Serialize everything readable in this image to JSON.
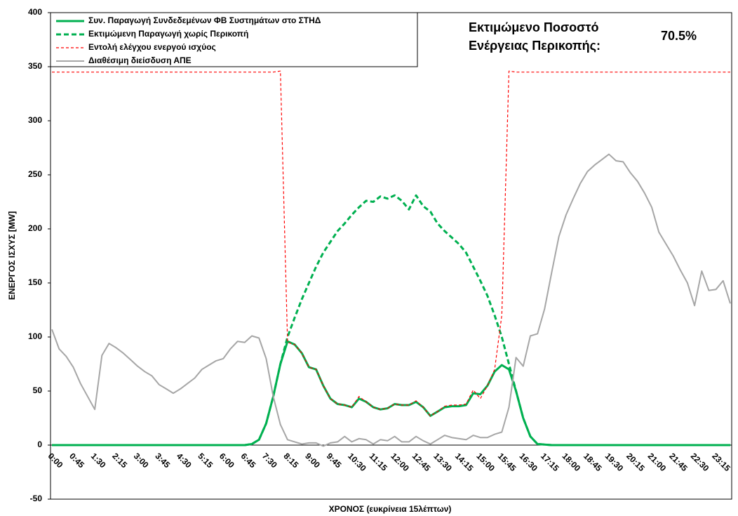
{
  "chart_data": {
    "type": "line",
    "x_label": "ΧΡΟΝΟΣ (ευκρίνεια 15λέπτων)",
    "y_label": "ΕΝΕΡΓΟΣ ΙΣΧΥΣ [MW]",
    "annotation": [
      "Εκτιμώμενο Ποσοστό",
      "Ενέργειας Περικοπής:"
    ],
    "annotation_value": "70.5%",
    "ylim": [
      -50,
      400
    ],
    "yticks": [
      -50,
      0,
      50,
      100,
      150,
      200,
      250,
      300,
      350,
      400
    ],
    "grid": false,
    "legend": "upper left",
    "categories": [
      "0:00",
      null,
      null,
      "0:45",
      null,
      null,
      "1:30",
      null,
      null,
      "2:15",
      null,
      null,
      "3:00",
      null,
      null,
      "3:45",
      null,
      null,
      "4:30",
      null,
      null,
      "5:15",
      null,
      null,
      "6:00",
      null,
      null,
      "6:45",
      null,
      null,
      "7:30",
      null,
      null,
      "8:15",
      null,
      null,
      "9:00",
      null,
      null,
      "9:45",
      null,
      null,
      "10:30",
      null,
      null,
      "11:15",
      null,
      null,
      "12:00",
      null,
      null,
      "12:45",
      null,
      null,
      "13:30",
      null,
      null,
      "14:15",
      null,
      null,
      "15:00",
      null,
      null,
      "15:45",
      null,
      null,
      "16:30",
      null,
      null,
      "17:15",
      null,
      null,
      "18:00",
      null,
      null,
      "18:45",
      null,
      null,
      "19:30",
      null,
      null,
      "20:15",
      null,
      null,
      "21:00",
      null,
      null,
      "21:45",
      null,
      null,
      "22:30",
      null,
      null,
      "23:15",
      null,
      null
    ],
    "series": [
      {
        "name": "Συν. Παραγωγή Συνδεδεμένων ΦΒ Συστημάτων στο ΣΤΗΔ",
        "color": "#00b050",
        "style": "solid",
        "values": [
          0,
          0,
          0,
          0,
          0,
          0,
          0,
          0,
          0,
          0,
          0,
          0,
          0,
          0,
          0,
          0,
          0,
          0,
          0,
          0,
          0,
          0,
          0,
          0,
          0,
          0,
          0,
          0,
          1,
          5,
          20,
          45,
          75,
          96,
          93,
          85,
          72,
          70,
          55,
          43,
          38,
          37,
          35,
          43,
          40,
          35,
          33,
          34,
          38,
          37,
          37,
          40,
          35,
          27,
          31,
          35,
          36,
          36,
          37,
          48,
          47,
          55,
          68,
          74,
          70,
          50,
          25,
          8,
          1,
          0.5,
          0,
          0,
          0,
          0,
          0,
          0,
          0,
          0,
          0,
          0,
          0,
          0,
          0,
          0,
          0,
          0,
          0,
          0,
          0,
          0,
          0,
          0,
          0,
          0,
          0,
          0
        ]
      },
      {
        "name": "Εκτιμώμενη Παραγωγή χωρίς Περικοπή",
        "color": "#00b050",
        "style": "dashed",
        "values": [
          0,
          0,
          0,
          0,
          0,
          0,
          0,
          0,
          0,
          0,
          0,
          0,
          0,
          0,
          0,
          0,
          0,
          0,
          0,
          0,
          0,
          0,
          0,
          0,
          0,
          0,
          0,
          0,
          1,
          5,
          20,
          45,
          75,
          100,
          118,
          135,
          150,
          165,
          178,
          188,
          198,
          205,
          213,
          220,
          226,
          225,
          230,
          228,
          231,
          226,
          218,
          231,
          221,
          216,
          205,
          198,
          192,
          186,
          178,
          165,
          152,
          138,
          120,
          100,
          75,
          50,
          25,
          8,
          1,
          0.5,
          0,
          0,
          0,
          0,
          0,
          0,
          0,
          0,
          0,
          0,
          0,
          0,
          0,
          0,
          0,
          0,
          0,
          0,
          0,
          0,
          0,
          0,
          0,
          0,
          0,
          0
        ]
      },
      {
        "name": "Εντολή ελέγχου ενεργού ισχύος",
        "color": "#ff0000",
        "style": "thin-dashed",
        "values": [
          345,
          345,
          345,
          345,
          345,
          345,
          345,
          345,
          345,
          345,
          345,
          345,
          345,
          345,
          345,
          345,
          345,
          345,
          345,
          345,
          345,
          345,
          345,
          345,
          345,
          345,
          345,
          345,
          345,
          345,
          345,
          345,
          346,
          95,
          93,
          85,
          72,
          70,
          55,
          43,
          38,
          37,
          35,
          45,
          40,
          35,
          33,
          34,
          38,
          37,
          37,
          41,
          35,
          27,
          31,
          36,
          37,
          37,
          38,
          51,
          43,
          55,
          70,
          120,
          346,
          345,
          345,
          345,
          345,
          345,
          345,
          345,
          345,
          345,
          345,
          345,
          345,
          345,
          345,
          345,
          345,
          345,
          345,
          345,
          345,
          345,
          345,
          345,
          345,
          345,
          345,
          345,
          345,
          345,
          345,
          345
        ]
      },
      {
        "name": "Διαθέσιμη διείσδυση ΑΠΕ",
        "color": "#a6a6a6",
        "style": "solid",
        "values": [
          107,
          89,
          82,
          72,
          57,
          45,
          33,
          83,
          94,
          90,
          85,
          79,
          73,
          68,
          64,
          56,
          52,
          48,
          52,
          57,
          62,
          70,
          74,
          78,
          80,
          89,
          96,
          95,
          101,
          99,
          80,
          45,
          19,
          5,
          3,
          1,
          2,
          2,
          -1,
          2,
          3,
          8,
          3,
          6,
          5,
          1,
          5,
          4,
          8,
          3,
          3,
          8,
          4,
          1,
          5,
          9,
          7,
          6,
          5,
          9,
          7,
          7,
          10,
          12,
          35,
          81,
          73,
          101,
          103,
          126,
          160,
          193,
          213,
          228,
          242,
          253,
          259,
          264,
          269,
          263,
          262,
          252,
          244,
          233,
          220,
          197,
          186,
          175,
          162,
          150,
          129,
          161,
          143,
          144,
          152,
          131
        ]
      }
    ]
  }
}
